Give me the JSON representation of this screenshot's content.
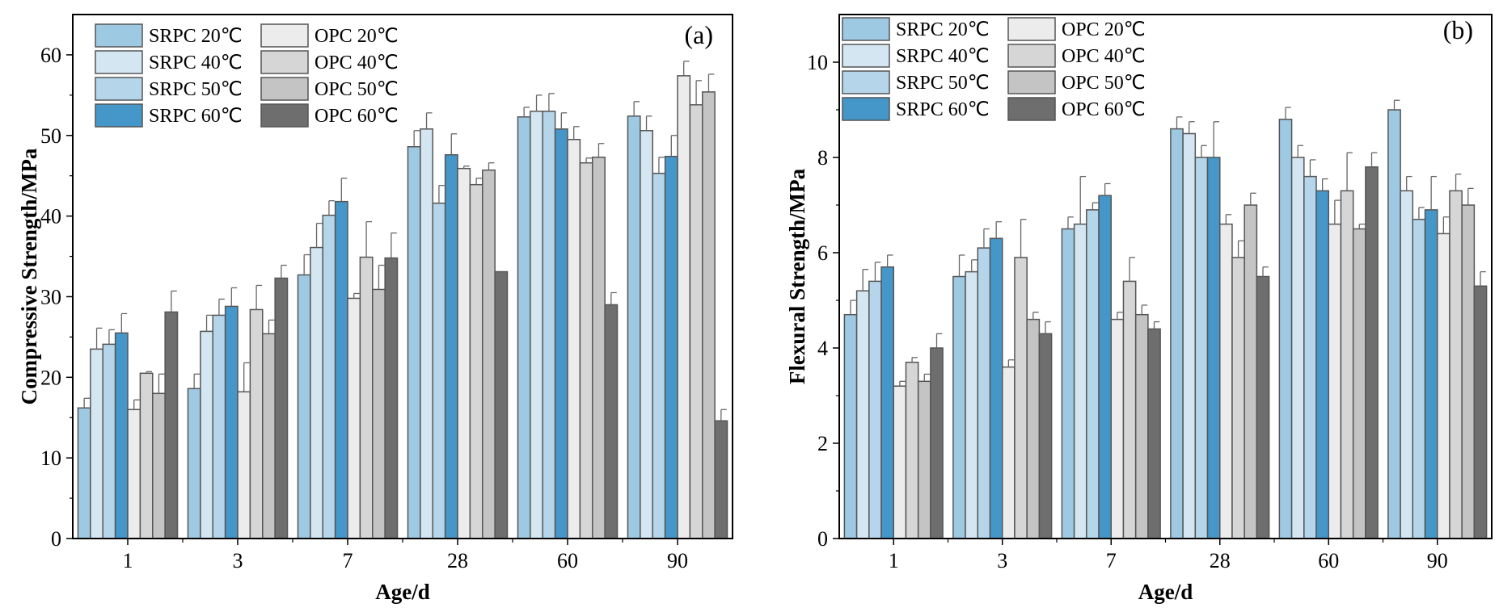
{
  "colors": {
    "SRPC 20℃": "#9ec9e2",
    "SRPC 40℃": "#d3e6f2",
    "SRPC 50℃": "#b5d6ea",
    "SRPC 60℃": "#4596c9",
    "OPC 20℃": "#ececec",
    "OPC 40℃": "#d6d6d6",
    "OPC 50℃": "#c4c4c4",
    "OPC 60℃": "#6e6e6e",
    "bar_edge": "#555555"
  },
  "chart_data": [
    {
      "type": "bar",
      "panel": "(a)",
      "xlabel": "Age/d",
      "ylabel": "Compressive Strength/MPa",
      "ylim": [
        0,
        65
      ],
      "yticks": [
        0,
        10,
        20,
        30,
        40,
        50,
        60
      ],
      "legend_position": "top-left",
      "legend_columns": 2,
      "categories": [
        "1",
        "3",
        "7",
        "28",
        "60",
        "90"
      ],
      "series": [
        {
          "name": "SRPC 20℃",
          "values": [
            16.2,
            18.6,
            32.7,
            48.6,
            52.3,
            52.4
          ],
          "errors": [
            1.2,
            1.8,
            2.5,
            2.0,
            1.2,
            1.8
          ]
        },
        {
          "name": "SRPC 40℃",
          "values": [
            23.5,
            25.7,
            36.1,
            50.8,
            53.0,
            50.6
          ],
          "errors": [
            2.6,
            2.0,
            3.0,
            2.0,
            2.0,
            1.8
          ]
        },
        {
          "name": "SRPC 50℃",
          "values": [
            24.1,
            27.7,
            40.1,
            41.6,
            53.0,
            45.3
          ],
          "errors": [
            1.8,
            2.0,
            1.8,
            2.2,
            2.2,
            2.0
          ]
        },
        {
          "name": "SRPC 60℃",
          "values": [
            25.5,
            28.8,
            41.8,
            47.6,
            50.8,
            47.4
          ],
          "errors": [
            2.4,
            2.3,
            2.9,
            2.6,
            2.0,
            2.6
          ]
        },
        {
          "name": "OPC 20℃",
          "values": [
            16.0,
            18.2,
            29.8,
            45.9,
            49.5,
            57.4
          ],
          "errors": [
            1.2,
            3.6,
            0.6,
            0.3,
            1.6,
            1.8
          ]
        },
        {
          "name": "OPC 40℃",
          "values": [
            20.5,
            28.4,
            34.9,
            43.9,
            46.6,
            53.8
          ],
          "errors": [
            0.2,
            3.0,
            4.4,
            0.8,
            0.6,
            3.0
          ]
        },
        {
          "name": "OPC 50℃",
          "values": [
            18.0,
            25.4,
            30.9,
            45.7,
            47.3,
            55.4
          ],
          "errors": [
            2.4,
            1.7,
            3.0,
            0.9,
            1.7,
            2.2
          ]
        },
        {
          "name": "OPC 60℃",
          "values": [
            28.1,
            32.3,
            34.8,
            33.1,
            29.0,
            14.6
          ],
          "errors": [
            2.6,
            1.6,
            3.1,
            0.0,
            1.5,
            1.4
          ]
        }
      ]
    },
    {
      "type": "bar",
      "panel": "(b)",
      "xlabel": "Age/d",
      "ylabel": "Flexural Strength/MPa",
      "ylim": [
        0,
        11
      ],
      "yticks": [
        0,
        2,
        4,
        6,
        8,
        10
      ],
      "legend_position": "top-left",
      "legend_columns": 2,
      "categories": [
        "1",
        "3",
        "7",
        "28",
        "60",
        "90"
      ],
      "series": [
        {
          "name": "SRPC 20℃",
          "values": [
            4.7,
            5.5,
            6.5,
            8.6,
            8.8,
            9.0
          ],
          "errors": [
            0.3,
            0.45,
            0.25,
            0.25,
            0.25,
            0.2
          ]
        },
        {
          "name": "SRPC 40℃",
          "values": [
            5.2,
            5.6,
            6.6,
            8.5,
            8.0,
            7.3
          ],
          "errors": [
            0.45,
            0.25,
            1.0,
            0.25,
            0.25,
            0.3
          ]
        },
        {
          "name": "SRPC 50℃",
          "values": [
            5.4,
            6.1,
            6.9,
            8.0,
            7.6,
            6.7
          ],
          "errors": [
            0.4,
            0.4,
            0.15,
            0.25,
            0.35,
            0.25
          ]
        },
        {
          "name": "SRPC 60℃",
          "values": [
            5.7,
            6.3,
            7.2,
            8.0,
            7.3,
            6.9
          ],
          "errors": [
            0.25,
            0.35,
            0.25,
            0.75,
            0.25,
            0.7
          ]
        },
        {
          "name": "OPC 20℃",
          "values": [
            3.2,
            3.6,
            4.6,
            6.6,
            6.6,
            6.4
          ],
          "errors": [
            0.1,
            0.15,
            0.15,
            0.2,
            0.5,
            0.35
          ]
        },
        {
          "name": "OPC 40℃",
          "values": [
            3.7,
            5.9,
            5.4,
            5.9,
            7.3,
            7.3
          ],
          "errors": [
            0.1,
            0.8,
            0.5,
            0.35,
            0.8,
            0.35
          ]
        },
        {
          "name": "OPC 50℃",
          "values": [
            3.3,
            4.6,
            4.7,
            7.0,
            6.5,
            7.0
          ],
          "errors": [
            0.15,
            0.15,
            0.2,
            0.25,
            0.1,
            0.35
          ]
        },
        {
          "name": "OPC 60℃",
          "values": [
            4.0,
            4.3,
            4.4,
            5.5,
            7.8,
            5.3
          ],
          "errors": [
            0.3,
            0.25,
            0.15,
            0.2,
            0.3,
            0.3
          ]
        }
      ]
    }
  ]
}
